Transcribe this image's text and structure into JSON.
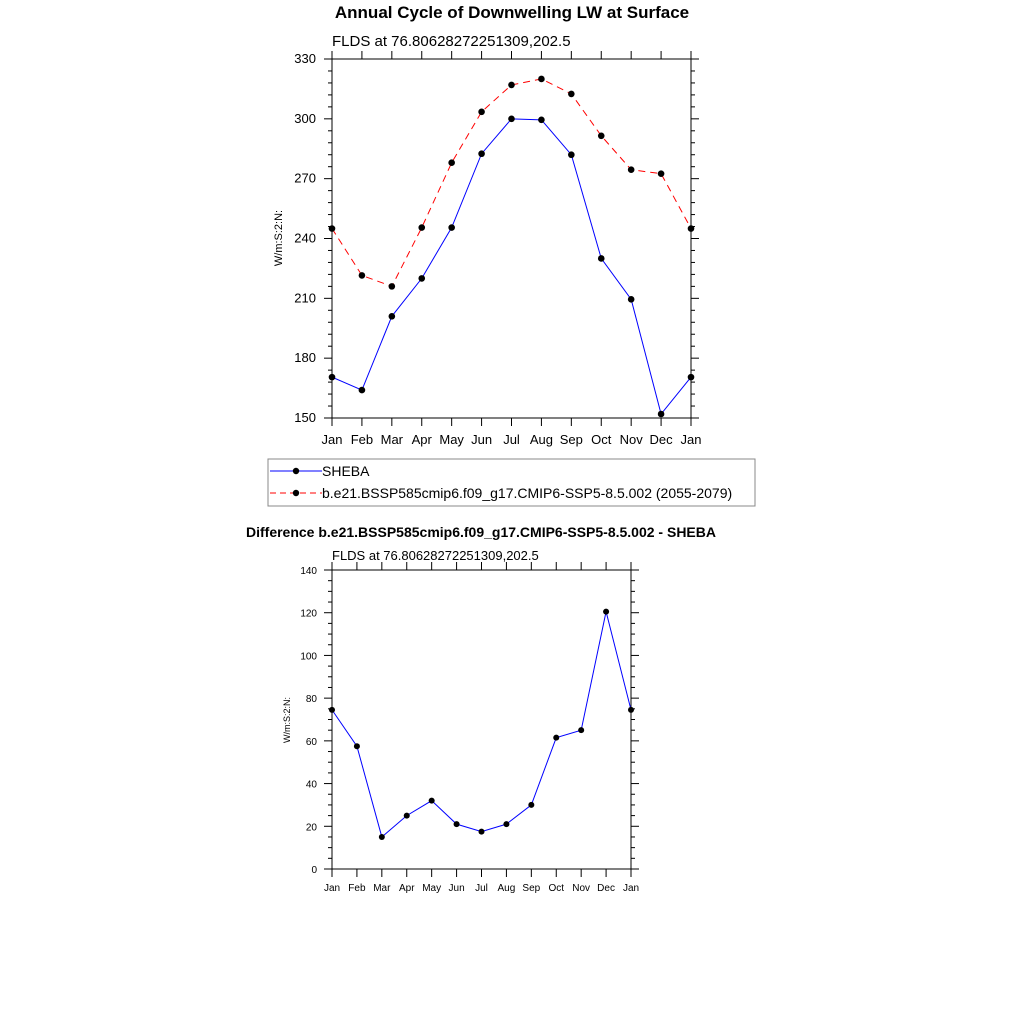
{
  "chart_data": [
    {
      "type": "line",
      "title": "Annual Cycle of Downwelling LW at Surface",
      "subtitle": "FLDS at 76.80628272251309,202.5",
      "ylabel": "W/m:S:2:N:",
      "xlabel": "",
      "categories": [
        "Jan",
        "Feb",
        "Mar",
        "Apr",
        "May",
        "Jun",
        "Jul",
        "Aug",
        "Sep",
        "Oct",
        "Nov",
        "Dec",
        "Jan"
      ],
      "ylim": [
        150,
        330
      ],
      "yticks": [
        150,
        180,
        210,
        240,
        270,
        300,
        330
      ],
      "series": [
        {
          "name": "SHEBA",
          "color": "#0000ff",
          "dash": "solid",
          "values": [
            170.5,
            164,
            201,
            220,
            245.5,
            282.5,
            300,
            299.5,
            282,
            230,
            209.5,
            152,
            170.5
          ]
        },
        {
          "name": "b.e21.BSSP585cmip6.f09_g17.CMIP6-SSP5-8.5.002 (2055-2079)",
          "color": "#ff0000",
          "dash": "dashed",
          "values": [
            245,
            221.5,
            216,
            245.5,
            278,
            303.5,
            317,
            320,
            312.5,
            291.5,
            274.5,
            272.5,
            245
          ]
        }
      ],
      "legend": [
        "SHEBA",
        "b.e21.BSSP585cmip6.f09_g17.CMIP6-SSP5-8.5.002 (2055-2079)"
      ]
    },
    {
      "type": "line",
      "title": "Difference b.e21.BSSP585cmip6.f09_g17.CMIP6-SSP5-8.5.002 - SHEBA",
      "subtitle": "FLDS at 76.80628272251309,202.5",
      "ylabel": "W/m:S:2:N:",
      "xlabel": "",
      "categories": [
        "Jan",
        "Feb",
        "Mar",
        "Apr",
        "May",
        "Jun",
        "Jul",
        "Aug",
        "Sep",
        "Oct",
        "Nov",
        "Dec",
        "Jan"
      ],
      "ylim": [
        0,
        140
      ],
      "yticks": [
        0,
        20,
        40,
        60,
        80,
        100,
        120,
        140
      ],
      "series": [
        {
          "name": "Difference",
          "color": "#0000ff",
          "dash": "solid",
          "values": [
            74.5,
            57.5,
            15,
            25,
            32,
            21,
            17.5,
            21,
            30,
            61.5,
            65,
            120.5,
            74.5
          ]
        }
      ]
    }
  ]
}
